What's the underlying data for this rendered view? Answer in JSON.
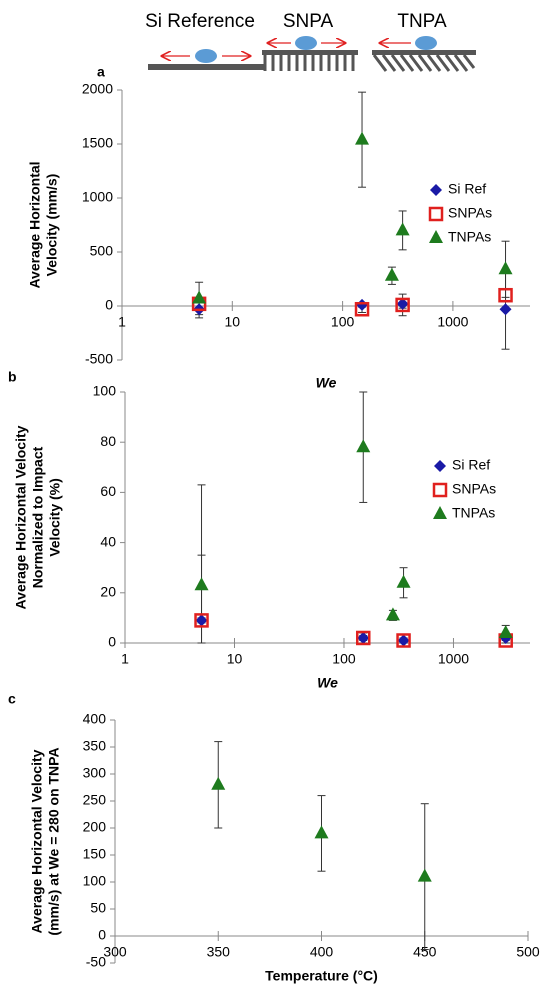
{
  "header": {
    "labels": [
      "Si Reference",
      "SNPA",
      "TNPA"
    ]
  },
  "chart_data": [
    {
      "type": "scatter",
      "panel": "a",
      "x_label": "We",
      "y_label": [
        "Average  Horizontal",
        "Velocity (mm/s)"
      ],
      "x_scale": "log",
      "xlim": [
        1,
        5000
      ],
      "xticks": [
        1,
        10,
        100,
        1000
      ],
      "ylim": [
        -500,
        2000
      ],
      "yticks": [
        -500,
        0,
        500,
        1000,
        1500,
        2000
      ],
      "series": [
        {
          "name": "Si Ref",
          "color": "#1a1aa6",
          "marker": "diamond",
          "x": [
            5,
            150,
            350,
            3000
          ],
          "values": [
            -30,
            10,
            20,
            -30
          ],
          "errors": [
            80,
            20,
            40,
            370
          ]
        },
        {
          "name": "SNPAs",
          "color": "#e0201e",
          "marker": "square",
          "x": [
            5,
            150,
            350,
            3000
          ],
          "values": [
            20,
            -30,
            10,
            100
          ],
          "errors": [
            40,
            30,
            100,
            60
          ]
        },
        {
          "name": "TNPAs",
          "color": "#1e7b1e",
          "marker": "triangle",
          "x": [
            5,
            150,
            280,
            350,
            3000
          ],
          "values": [
            70,
            1540,
            280,
            700,
            340
          ],
          "errors": [
            150,
            440,
            80,
            180,
            260
          ]
        }
      ]
    },
    {
      "type": "scatter",
      "panel": "b",
      "x_label": "We",
      "y_label": [
        "Average Horizontal Velocity",
        "Normalized to Impact",
        "Velocity (%)"
      ],
      "x_scale": "log",
      "xlim": [
        1,
        5000
      ],
      "xticks": [
        1,
        10,
        100,
        1000
      ],
      "ylim": [
        0,
        100
      ],
      "yticks": [
        0,
        20,
        40,
        60,
        80,
        100
      ],
      "series": [
        {
          "name": "Si Ref",
          "color": "#1a1aa6",
          "marker": "diamond",
          "x": [
            5,
            150,
            350,
            3000
          ],
          "values": [
            9,
            2,
            1,
            2
          ],
          "errors": [
            26,
            1,
            1,
            2
          ]
        },
        {
          "name": "SNPAs",
          "color": "#e0201e",
          "marker": "square",
          "x": [
            5,
            150,
            350,
            3000
          ],
          "values": [
            9,
            2,
            1,
            1
          ],
          "errors": [
            1,
            2,
            1,
            1
          ]
        },
        {
          "name": "TNPAs",
          "color": "#1e7b1e",
          "marker": "triangle",
          "x": [
            5,
            150,
            280,
            350,
            3000
          ],
          "values": [
            23,
            78,
            11,
            24,
            4
          ],
          "errors": [
            40,
            22,
            2,
            6,
            3
          ]
        }
      ]
    },
    {
      "type": "scatter",
      "panel": "c",
      "x_label": "Temperature (°C)",
      "y_label": [
        "Average Horizontal Velocity",
        "(mm/s) at We = 280 on TNPA"
      ],
      "xlim": [
        300,
        500
      ],
      "xticks": [
        300,
        350,
        400,
        450,
        500
      ],
      "ylim": [
        -50,
        400
      ],
      "yticks": [
        -50,
        0,
        50,
        100,
        150,
        200,
        250,
        300,
        350,
        400
      ],
      "series": [
        {
          "name": "TNPA",
          "color": "#1e7b1e",
          "marker": "triangle",
          "x": [
            350,
            400,
            450
          ],
          "values": [
            280,
            190,
            110
          ],
          "errors": [
            80,
            70,
            135
          ]
        }
      ],
      "legend": false
    }
  ]
}
